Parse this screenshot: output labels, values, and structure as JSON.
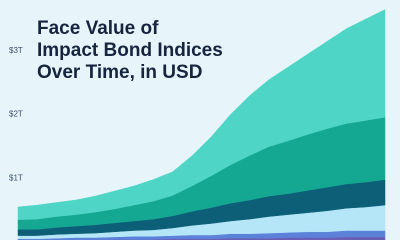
{
  "chart_data": {
    "type": "stacked-area",
    "title": [
      "Face Value of",
      "Impact Bond Indices",
      "Over Time, in USD"
    ],
    "categories": [
      null,
      null,
      null,
      null,
      null,
      null,
      null,
      null,
      null,
      null,
      null,
      null,
      null,
      null,
      null,
      null,
      null,
      null,
      null,
      null
    ],
    "series": [
      {
        "color": "#6b5fb5",
        "values": [
          0.02,
          0.02,
          0.03,
          0.03,
          0.03,
          0.04,
          0.04,
          0.04,
          0.05,
          0.05,
          0.05,
          0.06,
          0.06,
          0.06,
          0.07,
          0.07,
          0.07,
          0.08,
          0.08,
          0.08
        ]
      },
      {
        "color": "#5b82d8",
        "values": [
          0.03,
          0.03,
          0.03,
          0.04,
          0.04,
          0.04,
          0.05,
          0.05,
          0.05,
          0.06,
          0.06,
          0.07,
          0.07,
          0.08,
          0.08,
          0.09,
          0.09,
          0.1,
          0.1,
          0.1
        ]
      },
      {
        "color": "#b4e6f8",
        "values": [
          0.05,
          0.05,
          0.06,
          0.06,
          0.07,
          0.08,
          0.09,
          0.1,
          0.12,
          0.15,
          0.18,
          0.2,
          0.23,
          0.26,
          0.28,
          0.3,
          0.33,
          0.35,
          0.37,
          0.4
        ]
      },
      {
        "color": "#0c5f76",
        "values": [
          0.1,
          0.1,
          0.11,
          0.12,
          0.13,
          0.14,
          0.15,
          0.17,
          0.19,
          0.22,
          0.25,
          0.28,
          0.3,
          0.32,
          0.33,
          0.35,
          0.37,
          0.38,
          0.39,
          0.4
        ]
      },
      {
        "color": "#14a893",
        "values": [
          0.15,
          0.16,
          0.17,
          0.18,
          0.2,
          0.22,
          0.25,
          0.28,
          0.32,
          0.4,
          0.5,
          0.6,
          0.7,
          0.78,
          0.83,
          0.88,
          0.92,
          0.95,
          0.97,
          0.98
        ]
      },
      {
        "color": "#4fd5c5",
        "values": [
          0.2,
          0.22,
          0.22,
          0.23,
          0.25,
          0.28,
          0.3,
          0.34,
          0.37,
          0.47,
          0.61,
          0.79,
          0.94,
          1.05,
          1.16,
          1.26,
          1.37,
          1.49,
          1.59,
          1.69
        ]
      }
    ],
    "ylim": [
      0,
      3.8
    ],
    "yticks": [
      {
        "value": 1,
        "label": "$1T"
      },
      {
        "value": 2,
        "label": "$2T"
      },
      {
        "value": 3,
        "label": "$3T"
      }
    ]
  }
}
